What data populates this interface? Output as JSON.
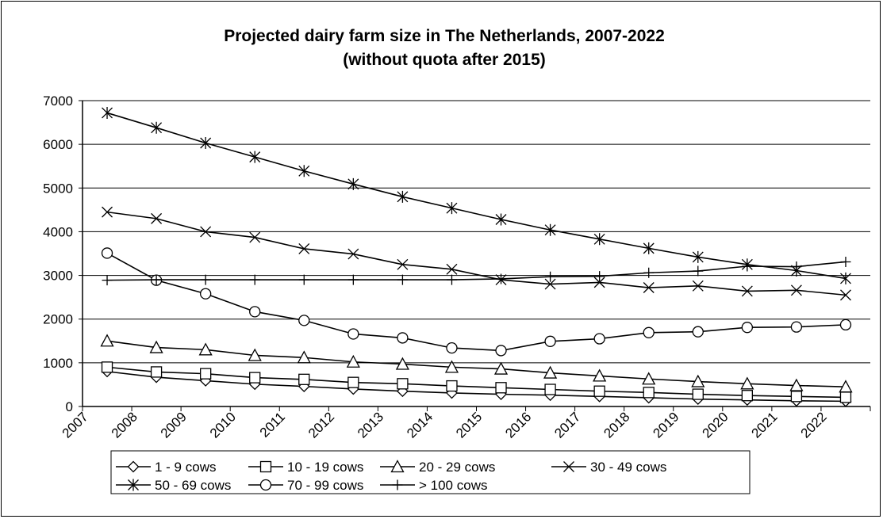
{
  "chart_data": {
    "type": "line",
    "title": [
      "Projected dairy farm size in The Netherlands, 2007-2022",
      "(without quota after 2015)"
    ],
    "xlabel": "",
    "ylabel": "",
    "categories": [
      "2007",
      "2008",
      "2009",
      "2010",
      "2011",
      "2012",
      "2013",
      "2014",
      "2015",
      "2016",
      "2017",
      "2018",
      "2019",
      "2020",
      "2021",
      "2022"
    ],
    "ylim": [
      0,
      7000
    ],
    "yticks": [
      "0",
      "1000",
      "2000",
      "3000",
      "4000",
      "5000",
      "6000",
      "7000"
    ],
    "grid": "horizontal",
    "legend_position": "bottom",
    "series": [
      {
        "name": "1  -  9 cows",
        "marker": "diamond",
        "values": [
          800,
          670,
          590,
          510,
          460,
          400,
          350,
          310,
          280,
          260,
          230,
          200,
          170,
          150,
          130,
          120
        ]
      },
      {
        "name": "10  -  19 cows",
        "marker": "square",
        "values": [
          900,
          790,
          750,
          660,
          620,
          550,
          520,
          470,
          430,
          390,
          350,
          320,
          280,
          250,
          230,
          210
        ]
      },
      {
        "name": "20  -  29 cows",
        "marker": "triangle",
        "values": [
          1500,
          1350,
          1300,
          1170,
          1120,
          1020,
          970,
          900,
          860,
          770,
          700,
          630,
          570,
          520,
          480,
          450
        ]
      },
      {
        "name": "30  -  49 cows",
        "marker": "x",
        "values": [
          4450,
          4300,
          4000,
          3870,
          3610,
          3490,
          3250,
          3140,
          2900,
          2800,
          2840,
          2720,
          2760,
          2640,
          2660,
          2550
        ]
      },
      {
        "name": "50  -  69 cows",
        "marker": "star",
        "values": [
          6720,
          6380,
          6030,
          5710,
          5390,
          5090,
          4800,
          4540,
          4280,
          4040,
          3830,
          3620,
          3420,
          3250,
          3110,
          2930
        ]
      },
      {
        "name": "70  -  99 cows",
        "marker": "circle",
        "values": [
          3510,
          2890,
          2580,
          2170,
          1970,
          1660,
          1570,
          1340,
          1280,
          1490,
          1550,
          1690,
          1710,
          1810,
          1820,
          1870
        ]
      },
      {
        "name": "> 100 cows",
        "marker": "plus",
        "values": [
          2890,
          2900,
          2900,
          2900,
          2900,
          2900,
          2900,
          2900,
          2920,
          2970,
          2980,
          3060,
          3100,
          3210,
          3200,
          3310
        ]
      }
    ]
  }
}
